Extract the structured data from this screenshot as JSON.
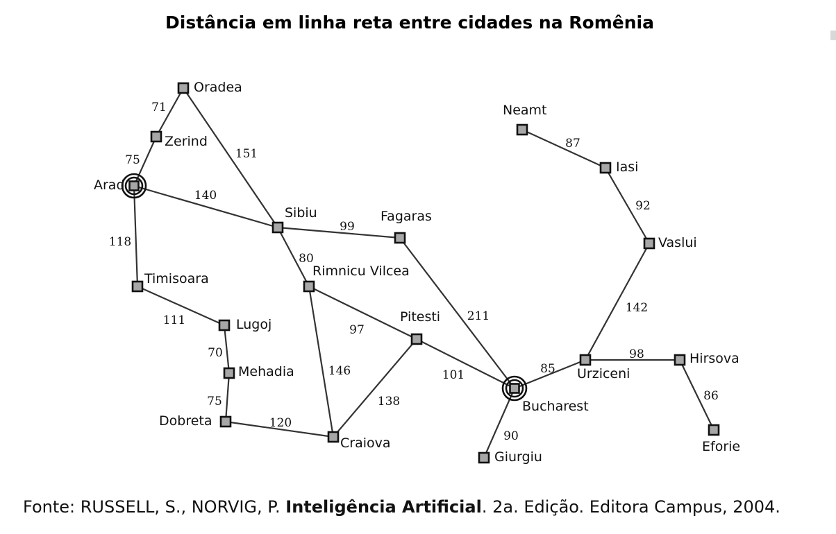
{
  "title": "Distância em linha reta entre cidades na Romênia",
  "source": {
    "prefix": "Fonte: RUSSELL, S., NORVIG, P. ",
    "book": "Inteligência Artificial",
    "suffix": ". 2a. Edição. Editora Campus, 2004."
  },
  "colors": {
    "node_fill": "#a7a7a7",
    "node_stroke": "#111111",
    "edge": "#333333"
  },
  "cities": [
    {
      "id": "oradea",
      "name": "Oradea"
    },
    {
      "id": "zerind",
      "name": "Zerind"
    },
    {
      "id": "arad",
      "name": "Arad",
      "highlight": true
    },
    {
      "id": "sibiu",
      "name": "Sibiu"
    },
    {
      "id": "fagaras",
      "name": "Fagaras"
    },
    {
      "id": "timisoara",
      "name": "Timisoara"
    },
    {
      "id": "lugoj",
      "name": "Lugoj"
    },
    {
      "id": "mehadia",
      "name": "Mehadia"
    },
    {
      "id": "dobreta",
      "name": "Dobreta"
    },
    {
      "id": "craiova",
      "name": "Craiova"
    },
    {
      "id": "rimnicu",
      "name": "Rimnicu Vilcea"
    },
    {
      "id": "pitesti",
      "name": "Pitesti"
    },
    {
      "id": "bucharest",
      "name": "Bucharest",
      "highlight": true
    },
    {
      "id": "giurgiu",
      "name": "Giurgiu"
    },
    {
      "id": "urziceni",
      "name": "Urziceni"
    },
    {
      "id": "hirsova",
      "name": "Hirsova"
    },
    {
      "id": "eforie",
      "name": "Eforie"
    },
    {
      "id": "vaslui",
      "name": "Vaslui"
    },
    {
      "id": "iasi",
      "name": "Iasi"
    },
    {
      "id": "neamt",
      "name": "Neamt"
    }
  ],
  "roads": [
    {
      "from": "oradea",
      "to": "zerind",
      "distance": "71"
    },
    {
      "from": "zerind",
      "to": "arad",
      "distance": "75"
    },
    {
      "from": "oradea",
      "to": "sibiu",
      "distance": "151"
    },
    {
      "from": "arad",
      "to": "sibiu",
      "distance": "140"
    },
    {
      "from": "arad",
      "to": "timisoara",
      "distance": "118"
    },
    {
      "from": "timisoara",
      "to": "lugoj",
      "distance": "111"
    },
    {
      "from": "lugoj",
      "to": "mehadia",
      "distance": "70"
    },
    {
      "from": "mehadia",
      "to": "dobreta",
      "distance": "75"
    },
    {
      "from": "dobreta",
      "to": "craiova",
      "distance": "120"
    },
    {
      "from": "sibiu",
      "to": "fagaras",
      "distance": "99"
    },
    {
      "from": "sibiu",
      "to": "rimnicu",
      "distance": "80"
    },
    {
      "from": "rimnicu",
      "to": "pitesti",
      "distance": "97"
    },
    {
      "from": "rimnicu",
      "to": "craiova",
      "distance": "146"
    },
    {
      "from": "craiova",
      "to": "pitesti",
      "distance": "138"
    },
    {
      "from": "fagaras",
      "to": "bucharest",
      "distance": "211"
    },
    {
      "from": "pitesti",
      "to": "bucharest",
      "distance": "101"
    },
    {
      "from": "bucharest",
      "to": "giurgiu",
      "distance": "90"
    },
    {
      "from": "bucharest",
      "to": "urziceni",
      "distance": "85"
    },
    {
      "from": "urziceni",
      "to": "hirsova",
      "distance": "98"
    },
    {
      "from": "hirsova",
      "to": "eforie",
      "distance": "86"
    },
    {
      "from": "urziceni",
      "to": "vaslui",
      "distance": "142"
    },
    {
      "from": "vaslui",
      "to": "iasi",
      "distance": "92"
    },
    {
      "from": "iasi",
      "to": "neamt",
      "distance": "87"
    }
  ]
}
